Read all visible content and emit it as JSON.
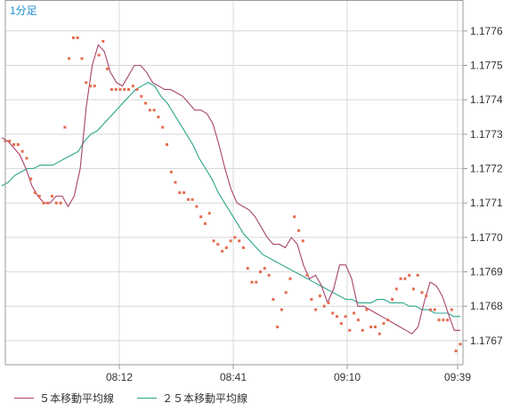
{
  "timeframe_label": "1分足",
  "colors": {
    "ma5": "#a8426b",
    "ma25": "#2aa58a",
    "points": "#e46c50",
    "grid": "#d8d8d8",
    "frame": "#9a9a9a"
  },
  "legend": [
    {
      "label": "５本移動平均線",
      "color": "#a8426b"
    },
    {
      "label": "２５本移動平均線",
      "color": "#2aa58a"
    }
  ],
  "chart_data": {
    "type": "line",
    "x_ticks": [
      "08:12",
      "08:41",
      "09:10",
      "09:39"
    ],
    "y_ticks": [
      "1.1767",
      "1.1768",
      "1.1769",
      "1.1770",
      "1.1771",
      "1.1772",
      "1.1773",
      "1.1774",
      "1.1775",
      "1.1776"
    ],
    "ylim": [
      1.17663,
      1.17769
    ],
    "grid": true,
    "legend_position": "bottom",
    "series": [
      {
        "name": "５本移動平均線",
        "style": "line",
        "values": [
          1.17729,
          1.17728,
          1.17726,
          1.17724,
          1.1772,
          1.17715,
          1.17712,
          1.1771,
          1.1771,
          1.17712,
          1.17712,
          1.17709,
          1.17712,
          1.1772,
          1.17738,
          1.1775,
          1.17756,
          1.17754,
          1.17748,
          1.17745,
          1.17744,
          1.17747,
          1.1775,
          1.1775,
          1.17748,
          1.17745,
          1.17744,
          1.17743,
          1.17743,
          1.17742,
          1.17741,
          1.17739,
          1.17737,
          1.17737,
          1.17736,
          1.17733,
          1.17727,
          1.1772,
          1.17714,
          1.1771,
          1.17709,
          1.17708,
          1.17706,
          1.17703,
          1.177,
          1.17698,
          1.17698,
          1.17697,
          1.177,
          1.17698,
          1.17692,
          1.17688,
          1.17689,
          1.17686,
          1.17681,
          1.17685,
          1.17692,
          1.17692,
          1.17688,
          1.1768,
          1.1768,
          1.17679,
          1.17678,
          1.17677,
          1.17676,
          1.17675,
          1.17674,
          1.17673,
          1.17672,
          1.17674,
          1.17681,
          1.17687,
          1.17686,
          1.17683,
          1.17678,
          1.17673,
          1.17673
        ]
      },
      {
        "name": "２５本移動平均線",
        "style": "line",
        "values": [
          1.17715,
          1.17716,
          1.17718,
          1.17719,
          1.1772,
          1.1772,
          1.17721,
          1.17721,
          1.17721,
          1.17722,
          1.17723,
          1.17724,
          1.17725,
          1.17728,
          1.1773,
          1.17731,
          1.17733,
          1.17735,
          1.17737,
          1.17739,
          1.17741,
          1.17743,
          1.17744,
          1.17745,
          1.17744,
          1.17741,
          1.17739,
          1.17736,
          1.17733,
          1.1773,
          1.17727,
          1.17723,
          1.1772,
          1.17717,
          1.17713,
          1.1771,
          1.17707,
          1.17704,
          1.17701,
          1.17699,
          1.17697,
          1.17695,
          1.17694,
          1.17693,
          1.17692,
          1.17691,
          1.1769,
          1.17689,
          1.17688,
          1.17687,
          1.17686,
          1.17685,
          1.17684,
          1.17683,
          1.17682,
          1.17682,
          1.17681,
          1.17681,
          1.17681,
          1.17682,
          1.17682,
          1.17681,
          1.17681,
          1.17681,
          1.1768,
          1.1768,
          1.17679,
          1.17679,
          1.17678,
          1.17678,
          1.17678,
          1.17677,
          1.17677
        ]
      },
      {
        "style": "points",
        "values": [
          1.17728,
          1.17728,
          1.17727,
          1.17727,
          1.17725,
          1.17723,
          1.17717,
          1.17713,
          1.17712,
          1.1771,
          1.1771,
          1.17712,
          1.1771,
          1.1771,
          1.17732,
          1.17752,
          1.17758,
          1.17758,
          1.17752,
          1.17745,
          1.17744,
          1.17744,
          1.17753,
          1.17757,
          1.17749,
          1.17743,
          1.17743,
          1.17743,
          1.17743,
          1.17743,
          1.17744,
          1.17743,
          1.17741,
          1.17739,
          1.17737,
          1.17737,
          1.17735,
          1.17732,
          1.17727,
          1.17719,
          1.17716,
          1.17713,
          1.17713,
          1.17711,
          1.17711,
          1.17709,
          1.17706,
          1.17704,
          1.17707,
          1.17699,
          1.17698,
          1.17696,
          1.17697,
          1.17699,
          1.177,
          1.17699,
          1.17697,
          1.17691,
          1.17687,
          1.17687,
          1.1769,
          1.17691,
          1.17689,
          1.17682,
          1.17674,
          1.17679,
          1.17684,
          1.17688,
          1.17706,
          1.17702,
          1.17699,
          1.17689,
          1.17682,
          1.17679,
          1.17683,
          1.1768,
          1.17681,
          1.17678,
          1.17677,
          1.17675,
          1.17677,
          1.17673,
          1.17678,
          1.17676,
          1.17673,
          1.17679,
          1.17674,
          1.17674,
          1.17672,
          1.17675,
          1.17676,
          1.17682,
          1.17685,
          1.17688,
          1.17688,
          1.17689,
          1.17685,
          1.17689,
          1.17684,
          1.17683,
          1.17679,
          1.17679,
          1.17676,
          1.17676,
          1.17676,
          1.17679,
          1.17667,
          1.17669
        ]
      }
    ]
  }
}
